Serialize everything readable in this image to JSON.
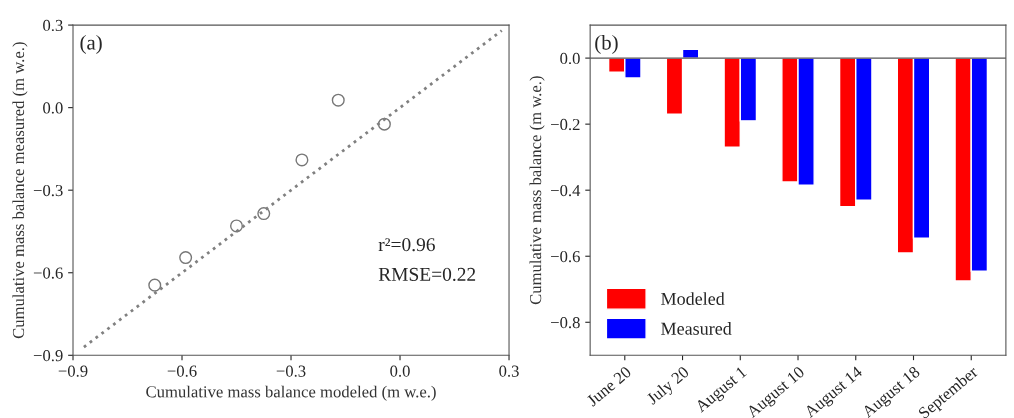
{
  "chart_data": [
    {
      "type": "scatter",
      "xlabel": "Cumulative mass balance modeled (m w.e.)",
      "ylabel": "Cumulative mass balance measured (m w.e.)",
      "xlim": [
        -0.9,
        0.3
      ],
      "ylim": [
        -0.9,
        0.3
      ],
      "xticks": [
        {
          "value": -0.9,
          "label": "−0.9"
        },
        {
          "value": -0.6,
          "label": "−0.6"
        },
        {
          "value": -0.3,
          "label": "−0.3"
        },
        {
          "value": 0.0,
          "label": "0.0"
        },
        0.3
      ],
      "yticks": [
        {
          "value": -0.9,
          "label": "−0.9"
        },
        {
          "value": -0.6,
          "label": "−0.6"
        },
        {
          "value": -0.3,
          "label": "−0.3"
        },
        {
          "value": 0.0,
          "label": "0.0"
        },
        0.3
      ],
      "grid": false,
      "series": [
        {
          "type": "scatter",
          "marker": "circle",
          "color": "#777777",
          "x": [
            -0.675,
            -0.59,
            -0.45,
            -0.375,
            -0.27,
            -0.17,
            -0.043
          ],
          "values": [
            -0.645,
            -0.545,
            -0.43,
            -0.385,
            -0.19,
            0.027,
            -0.06
          ]
        },
        {
          "type": "line",
          "line_style": "dotted",
          "color": "#808080",
          "x": [
            -0.87,
            0.28
          ],
          "values": [
            -0.87,
            0.28
          ]
        }
      ],
      "annotations": [
        "(a)",
        "r²=0.96",
        "RMSE=0.22"
      ]
    },
    {
      "type": "bar",
      "ylabel": "Cumulative mass balance (m w.e.)",
      "categories": [
        "June 20",
        "July 20",
        "August 1",
        "August 10",
        "August 14",
        "August 18",
        "September"
      ],
      "ylim": [
        -0.9,
        0.1
      ],
      "yticks": [
        {
          "value": -0.8,
          "label": "−0.8"
        },
        {
          "value": -0.6,
          "label": "−0.6"
        },
        {
          "value": -0.4,
          "label": "−0.4"
        },
        {
          "value": -0.2,
          "label": "−0.2"
        },
        {
          "value": 0.0,
          "label": "0.0"
        }
      ],
      "grid": false,
      "legend": "bottom left",
      "series": [
        {
          "name": "Modeled",
          "color": "#ff0000",
          "values": [
            -0.043,
            -0.17,
            -0.27,
            -0.375,
            -0.45,
            -0.59,
            -0.675
          ]
        },
        {
          "name": "Measured",
          "color": "#0000ff",
          "values": [
            -0.06,
            0.027,
            -0.19,
            -0.385,
            -0.43,
            -0.545,
            -0.645
          ]
        }
      ],
      "ref_lines": [
        {
          "axis": "y",
          "value": 0.0,
          "color": "#555555"
        }
      ],
      "annotations": [
        "(b)"
      ]
    }
  ]
}
